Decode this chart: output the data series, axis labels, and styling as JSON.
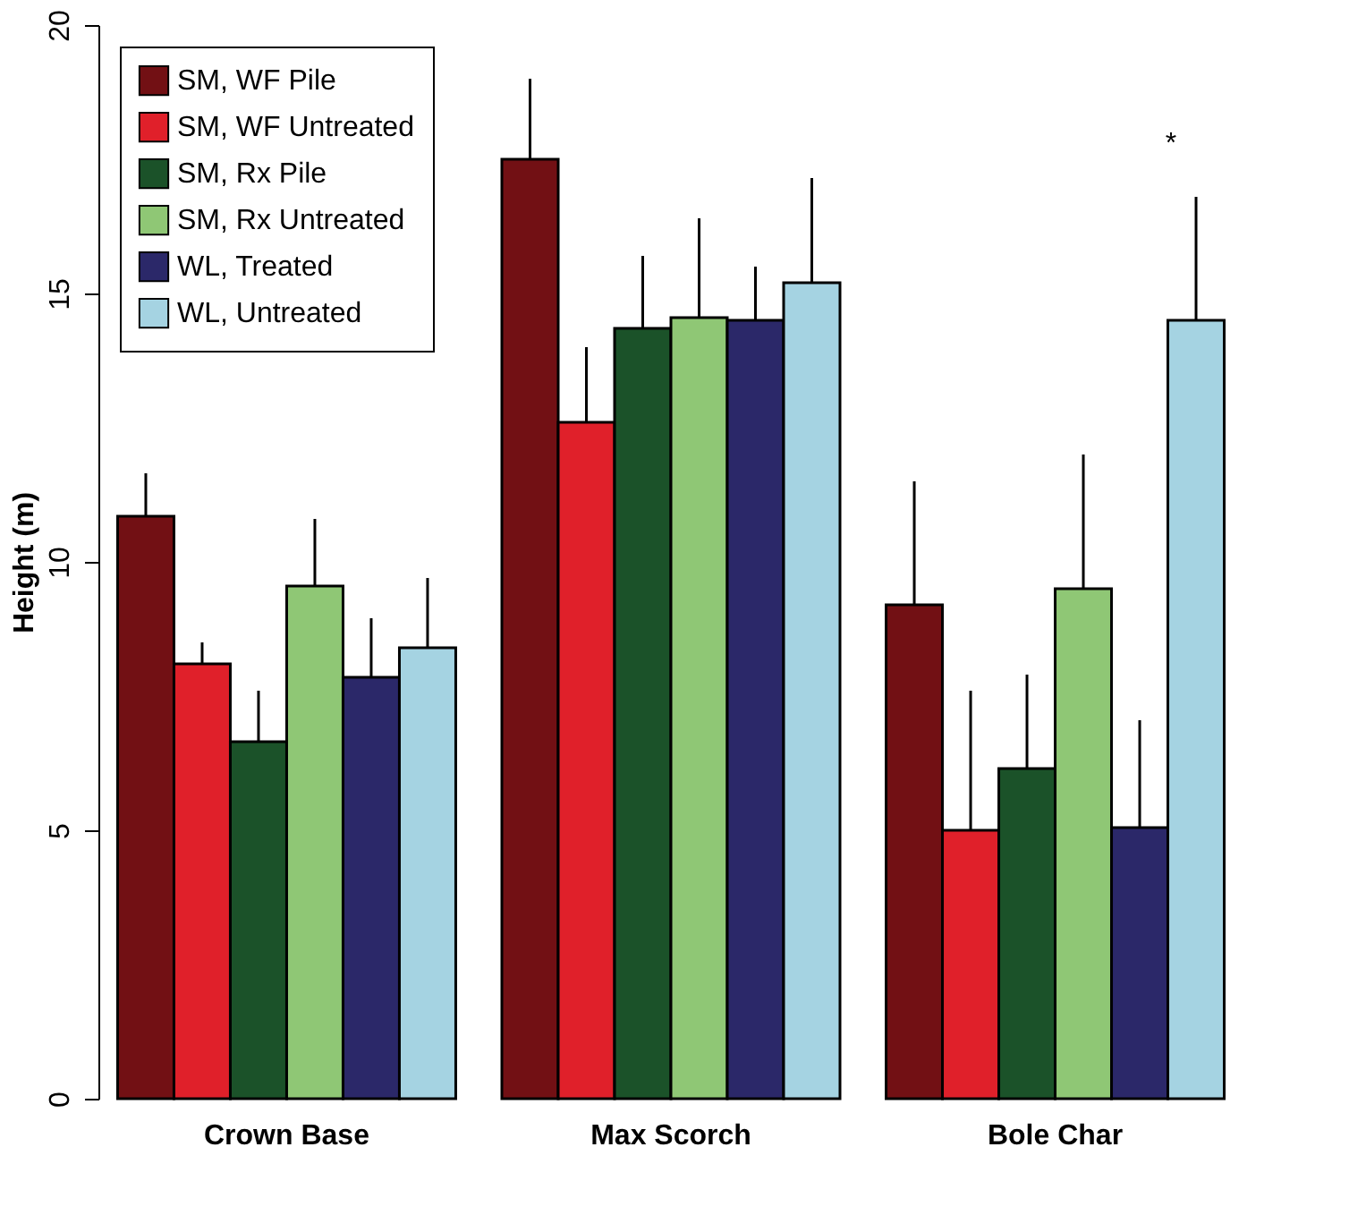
{
  "chart_data": {
    "type": "bar",
    "ylabel": "Height (m)",
    "categories": [
      "Crown Base",
      "Max Scorch",
      "Bole Char"
    ],
    "series": [
      {
        "name": "SM, WF Pile",
        "color": "#721014",
        "values": [
          10.85,
          17.5,
          9.2
        ],
        "errors": [
          [
            10.85,
            11.65
          ],
          [
            17.5,
            19.0
          ],
          [
            9.2,
            11.5
          ]
        ]
      },
      {
        "name": "SM, WF Untreated",
        "color": "#e0202a",
        "values": [
          8.1,
          12.6,
          5.0
        ],
        "errors": [
          [
            8.1,
            8.5
          ],
          [
            12.6,
            14.0
          ],
          [
            5.0,
            7.6
          ]
        ]
      },
      {
        "name": "SM, Rx Pile",
        "color": "#1b5229",
        "values": [
          6.65,
          14.35,
          6.15
        ],
        "errors": [
          [
            6.65,
            7.6
          ],
          [
            14.35,
            15.7
          ],
          [
            6.15,
            7.9
          ]
        ]
      },
      {
        "name": "SM, Rx Untreated",
        "color": "#8fc775",
        "values": [
          9.55,
          14.55,
          9.5
        ],
        "errors": [
          [
            9.55,
            10.8
          ],
          [
            14.55,
            16.4
          ],
          [
            9.5,
            12.0
          ]
        ]
      },
      {
        "name": "WL, Treated",
        "color": "#2b2869",
        "values": [
          7.85,
          14.5,
          5.05
        ],
        "errors": [
          [
            7.85,
            8.95
          ],
          [
            14.5,
            15.5
          ],
          [
            5.05,
            7.05
          ]
        ]
      },
      {
        "name": "WL, Untreated",
        "color": "#a5d3e2",
        "values": [
          8.4,
          15.2,
          14.5
        ],
        "errors": [
          [
            8.4,
            9.7
          ],
          [
            15.2,
            17.15
          ],
          [
            14.5,
            16.8
          ]
        ]
      }
    ],
    "annotations": [
      "*"
    ],
    "ylim": [
      0,
      20
    ],
    "yticks": [
      0,
      5,
      10,
      15,
      20
    ],
    "grid": false,
    "legend": "top left"
  }
}
